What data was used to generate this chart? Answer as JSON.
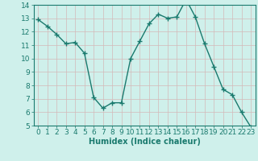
{
  "x": [
    0,
    1,
    2,
    3,
    4,
    5,
    6,
    7,
    8,
    9,
    10,
    11,
    12,
    13,
    14,
    15,
    16,
    17,
    18,
    19,
    20,
    21,
    22,
    23
  ],
  "y": [
    12.9,
    12.4,
    11.8,
    11.1,
    11.2,
    10.4,
    7.1,
    6.3,
    6.7,
    6.7,
    10.0,
    11.3,
    12.6,
    13.3,
    13.0,
    13.1,
    14.4,
    13.1,
    11.1,
    9.4,
    7.7,
    7.3,
    6.0,
    4.9
  ],
  "line_color": "#1a7a6e",
  "marker": "+",
  "marker_size": 5,
  "bg_color": "#cff0eb",
  "grid_color": "#b8ddd8",
  "xlabel": "Humidex (Indice chaleur)",
  "ylim": [
    5,
    14
  ],
  "xlim": [
    -0.5,
    23.5
  ],
  "yticks": [
    5,
    6,
    7,
    8,
    9,
    10,
    11,
    12,
    13,
    14
  ],
  "xticks": [
    0,
    1,
    2,
    3,
    4,
    5,
    6,
    7,
    8,
    9,
    10,
    11,
    12,
    13,
    14,
    15,
    16,
    17,
    18,
    19,
    20,
    21,
    22,
    23
  ],
  "tick_color": "#1a7a6e",
  "label_fontsize": 6.5,
  "axis_fontsize": 7
}
